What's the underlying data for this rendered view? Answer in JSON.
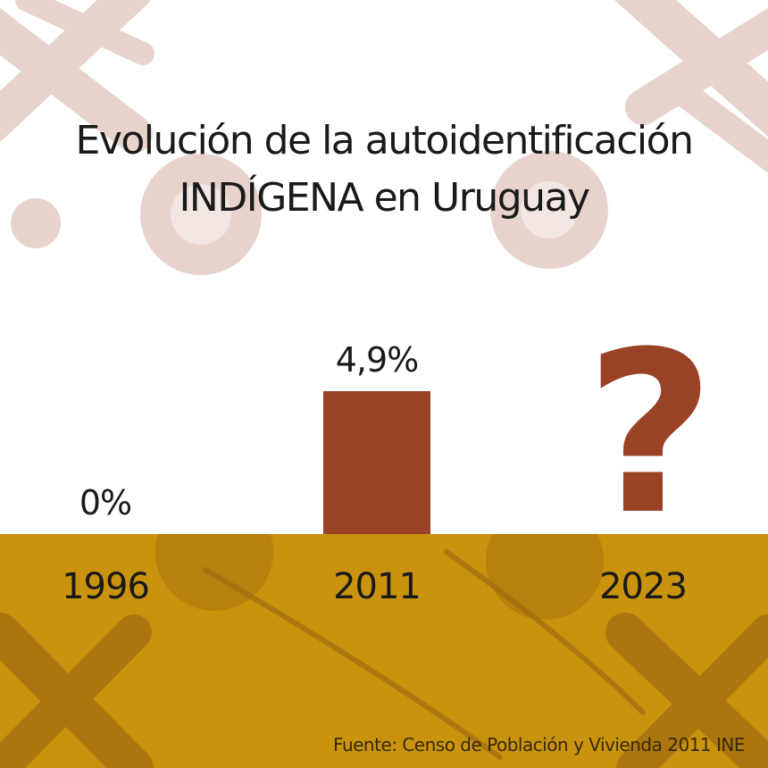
{
  "title_lines": [
    "Evolución de la autoidentificación",
    "INDÍGENA en Uruguay"
  ],
  "source": "Fuente: Censo de Población y Vivienda 2011 INE",
  "colors": {
    "background": "#ffffff",
    "ground": "#c9930e",
    "bar": "#9a4226",
    "question_mark": "#9a4226",
    "text": "#1a1a1a",
    "decoration": "#e7d3cc"
  },
  "chart_data": {
    "type": "bar",
    "categories": [
      "1996",
      "2011",
      "2023"
    ],
    "values": [
      0,
      4.9,
      null
    ],
    "value_labels": [
      "0%",
      "4,9%",
      "?"
    ],
    "unit": "%",
    "title": "Evolución de la autoidentificación INDÍGENA en Uruguay",
    "xlabel": "",
    "ylabel": "",
    "ylim": [
      0,
      5.6
    ],
    "grid": false,
    "legend": "none"
  }
}
